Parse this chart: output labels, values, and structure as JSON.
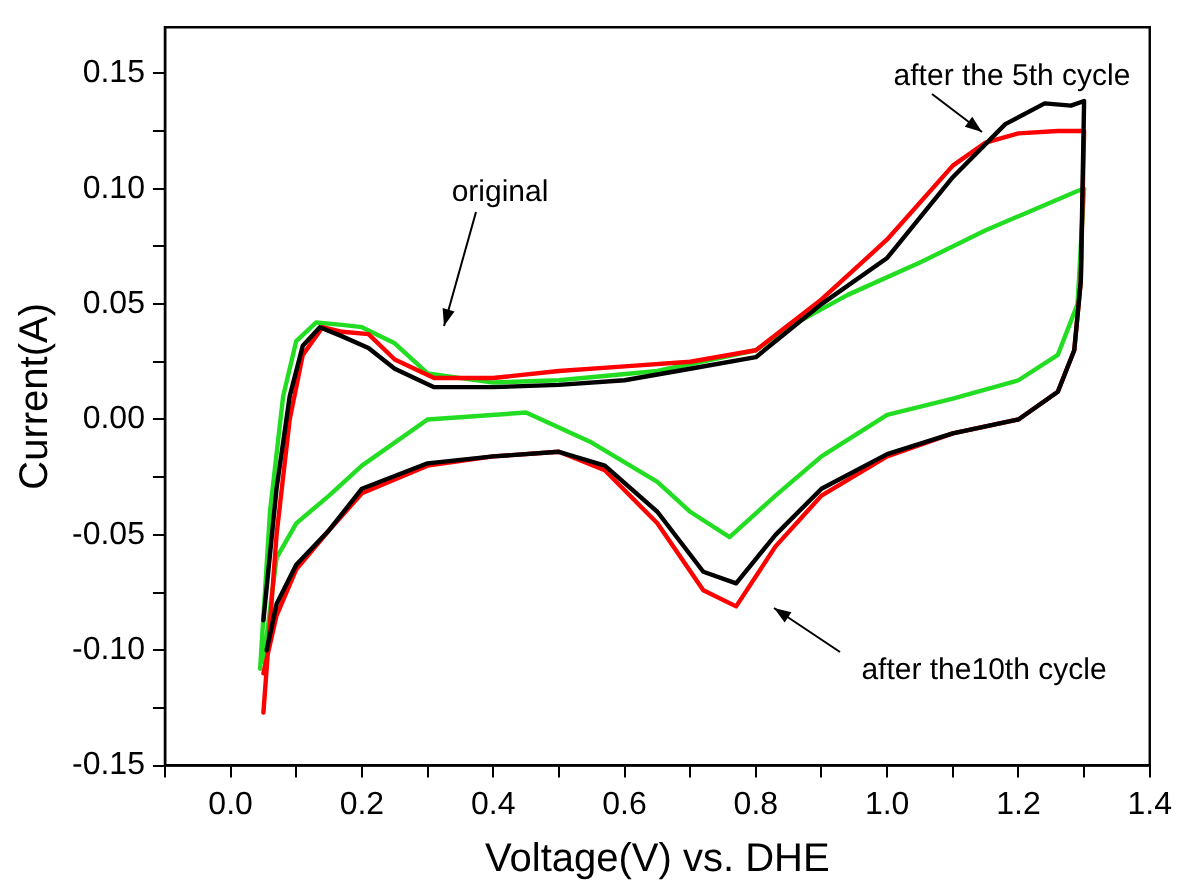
{
  "chart_data": {
    "type": "line",
    "xlabel": "Voltage(V) vs. DHE",
    "ylabel": "Current(A)",
    "xlim": [
      -0.1,
      1.4
    ],
    "xticks": [
      {
        "value": -0.1,
        "label": null
      },
      {
        "value": 0,
        "label": "0.0"
      },
      {
        "value": 0.1,
        "label": null
      },
      {
        "value": 0.2,
        "label": "0.2"
      },
      {
        "value": 0.3,
        "label": null
      },
      {
        "value": 0.4,
        "label": "0.4"
      },
      {
        "value": 0.5,
        "label": null
      },
      {
        "value": 0.6,
        "label": "0.6"
      },
      {
        "value": 0.7,
        "label": null
      },
      {
        "value": 0.8,
        "label": "0.8"
      },
      {
        "value": 0.9,
        "label": null
      },
      {
        "value": 1,
        "label": "1.0"
      },
      {
        "value": 1.1,
        "label": null
      },
      {
        "value": 1.2,
        "label": "1.2"
      },
      {
        "value": 1.3,
        "label": null
      },
      {
        "value": 1.4,
        "label": "1.4"
      }
    ],
    "ylim": [
      -0.15,
      0.17
    ],
    "yticks": [
      {
        "value": -0.15,
        "label": "-0.15"
      },
      {
        "value": -0.125,
        "label": null
      },
      {
        "value": -0.1,
        "label": "-0.10"
      },
      {
        "value": -0.075,
        "label": null
      },
      {
        "value": -0.05,
        "label": "-0.05"
      },
      {
        "value": -0.025,
        "label": null
      },
      {
        "value": 0,
        "label": "0.00"
      },
      {
        "value": 0.025,
        "label": null
      },
      {
        "value": 0.05,
        "label": "0.05"
      },
      {
        "value": 0.075,
        "label": null
      },
      {
        "value": 0.1,
        "label": "0.10"
      },
      {
        "value": 0.125,
        "label": null
      },
      {
        "value": 0.15,
        "label": "0.15"
      }
    ],
    "grid": false,
    "legend": false,
    "marker": "none",
    "line_style": "solid",
    "series": [
      {
        "color": "#000000",
        "x": [
          0.05,
          0.07,
          0.09,
          0.11,
          0.136,
          0.17,
          0.21,
          0.25,
          0.31,
          0.4,
          0.5,
          0.6,
          0.7,
          0.8,
          0.9,
          1.0,
          1.1,
          1.18,
          1.24,
          1.28,
          1.3,
          1.295,
          1.285,
          1.26,
          1.2,
          1.1,
          1.0,
          0.9,
          0.83,
          0.77,
          0.72,
          0.65,
          0.57,
          0.5,
          0.4,
          0.3,
          0.2,
          0.15,
          0.1,
          0.07,
          0.055
        ],
        "values": [
          -0.087,
          -0.03,
          0.01,
          0.032,
          0.04,
          0.036,
          0.031,
          0.022,
          0.014,
          0.014,
          0.015,
          0.017,
          0.022,
          0.027,
          0.05,
          0.07,
          0.105,
          0.128,
          0.137,
          0.136,
          0.138,
          0.06,
          0.03,
          0.012,
          0.0,
          -0.006,
          -0.015,
          -0.03,
          -0.05,
          -0.071,
          -0.066,
          -0.04,
          -0.02,
          -0.014,
          -0.016,
          -0.019,
          -0.03,
          -0.048,
          -0.063,
          -0.08,
          -0.1
        ]
      },
      {
        "color": "#ff0000",
        "x": [
          0.05,
          0.07,
          0.09,
          0.11,
          0.14,
          0.17,
          0.21,
          0.25,
          0.31,
          0.4,
          0.5,
          0.6,
          0.7,
          0.8,
          0.9,
          1.0,
          1.1,
          1.15,
          1.2,
          1.26,
          1.3,
          1.295,
          1.285,
          1.26,
          1.2,
          1.1,
          1.0,
          0.9,
          0.83,
          0.77,
          0.72,
          0.65,
          0.57,
          0.5,
          0.4,
          0.3,
          0.2,
          0.15,
          0.1,
          0.07,
          0.05
        ],
        "values": [
          -0.127,
          -0.05,
          0.0,
          0.028,
          0.04,
          0.038,
          0.037,
          0.026,
          0.018,
          0.018,
          0.021,
          0.023,
          0.025,
          0.03,
          0.052,
          0.078,
          0.11,
          0.12,
          0.124,
          0.125,
          0.125,
          0.06,
          0.03,
          0.012,
          0.0,
          -0.006,
          -0.016,
          -0.033,
          -0.055,
          -0.081,
          -0.074,
          -0.045,
          -0.022,
          -0.014,
          -0.016,
          -0.02,
          -0.032,
          -0.048,
          -0.065,
          -0.085,
          -0.11
        ]
      },
      {
        "color": "#22dd22",
        "x": [
          0.045,
          0.06,
          0.08,
          0.1,
          0.13,
          0.17,
          0.2,
          0.25,
          0.3,
          0.4,
          0.5,
          0.65,
          0.8,
          0.85,
          0.94,
          1.05,
          1.15,
          1.29,
          1.3,
          1.29,
          1.26,
          1.2,
          1.1,
          1.0,
          0.9,
          0.83,
          0.76,
          0.7,
          0.65,
          0.55,
          0.45,
          0.3,
          0.2,
          0.15,
          0.1,
          0.07,
          0.05
        ],
        "values": [
          -0.108,
          -0.04,
          0.01,
          0.034,
          0.042,
          0.041,
          0.04,
          0.033,
          0.02,
          0.016,
          0.017,
          0.021,
          0.03,
          0.04,
          0.054,
          0.068,
          0.082,
          0.099,
          0.1,
          0.05,
          0.028,
          0.017,
          0.009,
          0.002,
          -0.016,
          -0.033,
          -0.051,
          -0.04,
          -0.027,
          -0.01,
          0.003,
          0.0,
          -0.02,
          -0.033,
          -0.045,
          -0.06,
          -0.105
        ]
      }
    ],
    "annotations": [
      "original",
      "after the 5th cycle",
      "after the10th cycle"
    ]
  }
}
